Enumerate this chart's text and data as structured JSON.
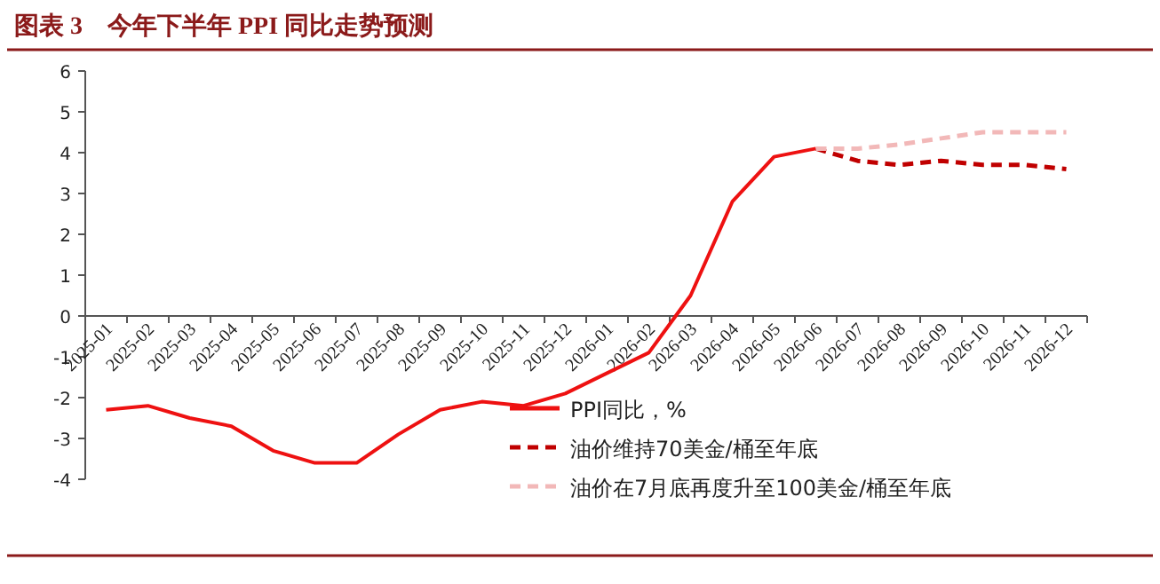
{
  "chart_data": {
    "type": "line",
    "title": "图表 3　今年下半年 PPI 同比走势预测",
    "categories": [
      "2025-01",
      "2025-02",
      "2025-03",
      "2025-04",
      "2025-05",
      "2025-06",
      "2025-07",
      "2025-08",
      "2025-09",
      "2025-10",
      "2025-11",
      "2025-12",
      "2026-01",
      "2026-02",
      "2026-03",
      "2026-04",
      "2026-05",
      "2026-06",
      "2026-07",
      "2026-08",
      "2026-09",
      "2026-10",
      "2026-11",
      "2026-12"
    ],
    "series": [
      {
        "name": "PPI同比，%",
        "color": "#ee1111",
        "line_style": "solid",
        "values": [
          -2.3,
          -2.2,
          -2.5,
          -2.7,
          -3.3,
          -3.6,
          -3.6,
          -2.9,
          -2.3,
          -2.1,
          -2.2,
          -1.9,
          -1.4,
          -0.9,
          0.5,
          2.8,
          3.9,
          4.1,
          null,
          null,
          null,
          null,
          null,
          null
        ]
      },
      {
        "name": "油价维持70美金/桶至年底",
        "color": "#c00000",
        "line_style": "dashed",
        "values": [
          null,
          null,
          null,
          null,
          null,
          null,
          null,
          null,
          null,
          null,
          null,
          null,
          null,
          null,
          null,
          null,
          null,
          4.1,
          3.8,
          3.7,
          3.8,
          3.7,
          3.7,
          3.6
        ]
      },
      {
        "name": "油价在7月底再度升至100美金/桶至年底",
        "color": "#f2b8b8",
        "line_style": "dashed",
        "values": [
          null,
          null,
          null,
          null,
          null,
          null,
          null,
          null,
          null,
          null,
          null,
          null,
          null,
          null,
          null,
          null,
          null,
          4.1,
          4.1,
          4.2,
          4.35,
          4.5,
          4.5,
          4.5
        ]
      }
    ],
    "ylim": [
      -4,
      6
    ],
    "yticks": [
      -4,
      -3,
      -2,
      -1,
      0,
      1,
      2,
      3,
      4,
      5,
      6
    ],
    "grid": false,
    "legend": "bottom right",
    "marker": "none"
  }
}
